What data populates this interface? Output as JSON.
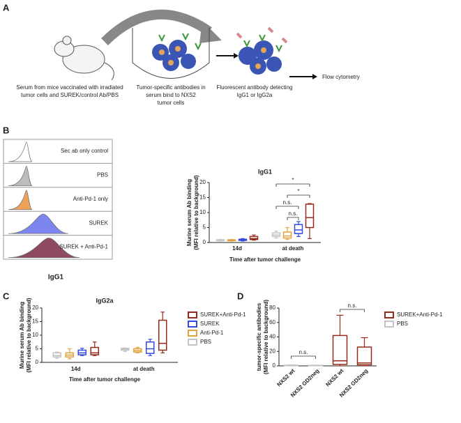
{
  "panel_a": {
    "label": "A",
    "steps": [
      [
        "Serum from mice vaccinated with irradiated",
        "tumor cells and SUREK/control Ab/PBS"
      ],
      [
        "Tumor-specific antibodies in",
        "serum bind to NXS2",
        "tumor cells"
      ],
      [
        "Fluorescent antibody detecting",
        "IgG1 or IgG2a"
      ]
    ],
    "end": "Flow cytometry"
  },
  "panel_b": {
    "label": "B",
    "histograms": [
      "Sec ab only control",
      "PBS",
      "Anti-Pd-1 only",
      "SUREK",
      "SUREK + Anti-Pd-1"
    ],
    "xlabel": "IgG1"
  },
  "panel_c_label": "C",
  "panel_d_label": "D",
  "chart_data": [
    {
      "type": "box",
      "title": "IgG1",
      "ylabel": [
        "Murine serum Ab binding",
        "(MFI relative to background)"
      ],
      "xlabel": "Time after tumor challenge",
      "categories": [
        "14d",
        "at death"
      ],
      "ylim": [
        0,
        20
      ],
      "yticks": [
        0,
        5,
        10,
        15,
        20
      ],
      "series": [
        {
          "name": "PBS",
          "color": "#c4c4c4",
          "min": [
            0.5,
            1.5
          ],
          "q1": [
            0.6,
            2
          ],
          "median": [
            0.8,
            2.5
          ],
          "q3": [
            0.9,
            3.2
          ],
          "max": [
            1,
            3.8
          ]
        },
        {
          "name": "Anti-Pd-1",
          "color": "#e5a03a",
          "min": [
            0.5,
            1
          ],
          "q1": [
            0.6,
            1.5
          ],
          "median": [
            0.8,
            2.2
          ],
          "q3": [
            0.9,
            3.5
          ],
          "max": [
            1,
            5
          ]
        },
        {
          "name": "SUREK",
          "color": "#3448e0",
          "min": [
            0.5,
            2
          ],
          "q1": [
            0.7,
            3
          ],
          "median": [
            0.9,
            4.2
          ],
          "q3": [
            1.1,
            6
          ],
          "max": [
            1.3,
            7
          ]
        },
        {
          "name": "SUREK+Anti-Pd-1",
          "color": "#952a1c",
          "min": [
            0.8,
            1.3
          ],
          "q1": [
            1,
            5
          ],
          "median": [
            1.3,
            8.3
          ],
          "q3": [
            2,
            12.8
          ],
          "max": [
            2.5,
            13
          ]
        }
      ],
      "annotations": [
        "*",
        "*",
        "n.s.",
        "n.s."
      ]
    },
    {
      "type": "box",
      "title": "IgG2a",
      "ylabel": [
        "Murine serum Ab binding",
        "(MFI relative to background)"
      ],
      "xlabel": "Time after tumor challenge",
      "categories": [
        "14d",
        "at death"
      ],
      "ylim": [
        0,
        20
      ],
      "yticks": [
        0,
        5,
        10,
        15,
        20
      ],
      "series": [
        {
          "name": "PBS",
          "color": "#c4c4c4",
          "min": [
            1.5,
            4
          ],
          "q1": [
            2,
            4.5
          ],
          "median": [
            2.5,
            4.8
          ],
          "q3": [
            3.5,
            5.2
          ],
          "max": [
            3.8,
            5.3
          ]
        },
        {
          "name": "Anti-Pd-1",
          "color": "#e5a03a",
          "min": [
            1.3,
            3.5
          ],
          "q1": [
            2,
            3.8
          ],
          "median": [
            2.7,
            4.3
          ],
          "q3": [
            3.5,
            5
          ],
          "max": [
            5,
            5.5
          ]
        },
        {
          "name": "SUREK",
          "color": "#3448e0",
          "min": [
            2.5,
            2.5
          ],
          "q1": [
            2.8,
            3.3
          ],
          "median": [
            3.5,
            5
          ],
          "q3": [
            4.5,
            7.5
          ],
          "max": [
            5.2,
            8.5
          ]
        },
        {
          "name": "SUREK+Anti-Pd-1",
          "color": "#952a1c",
          "min": [
            2.5,
            3.5
          ],
          "q1": [
            2.8,
            4.5
          ],
          "median": [
            3.5,
            7
          ],
          "q3": [
            5.5,
            15.5
          ],
          "max": [
            7.5,
            18.5
          ]
        }
      ],
      "legend": true
    },
    {
      "type": "box",
      "ylabel": [
        "tumor-specific antibodies",
        "(MFI relative to background)"
      ],
      "categories": [
        "NXS2 wt",
        "NXS2 GD2neg",
        "NXS2 wt",
        "NXS2 GD2neg"
      ],
      "ylim": [
        0,
        80
      ],
      "yticks": [
        0,
        20,
        40,
        60,
        80
      ],
      "series": [
        {
          "name": "SUREK+Anti-Pd-1",
          "color": "#952a1c",
          "min": [
            null,
            null,
            0,
            0
          ],
          "q1": [
            null,
            null,
            2,
            1.5
          ],
          "median": [
            null,
            null,
            7,
            4
          ],
          "q3": [
            null,
            null,
            42,
            26
          ],
          "max": [
            null,
            null,
            70,
            39
          ]
        },
        {
          "name": "PBS",
          "color": "#c4c4c4",
          "min": [
            0,
            0,
            null,
            null
          ],
          "q1": [
            0.3,
            0.2,
            null,
            null
          ],
          "median": [
            0.5,
            0.4,
            null,
            null
          ],
          "q3": [
            1,
            0.8,
            null,
            null
          ],
          "max": [
            1.5,
            1,
            null,
            null
          ]
        }
      ],
      "annotations": [
        "n.s.",
        "n.s."
      ],
      "legend": true
    }
  ]
}
